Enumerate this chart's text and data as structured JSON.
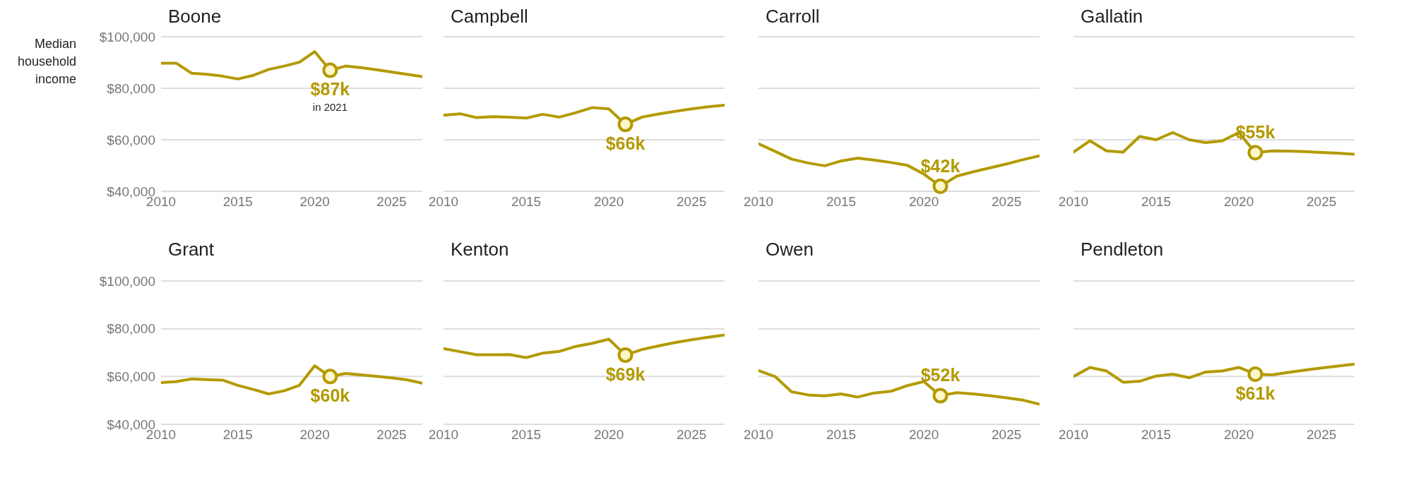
{
  "chart_data": [
    {
      "type": "line",
      "title": "Boone",
      "ylabel": "Median household income",
      "x": [
        2010,
        2011,
        2012,
        2013,
        2014,
        2015,
        2016,
        2017,
        2018,
        2019,
        2020,
        2021,
        2022,
        2023,
        2024,
        2025,
        2026,
        2027
      ],
      "xlim": [
        2010,
        2027
      ],
      "xticks": [
        2010,
        2015,
        2020,
        2025
      ],
      "ylim": [
        40000,
        100000
      ],
      "yticks": [
        {
          "value": 40000,
          "label": "$40,000"
        },
        {
          "value": 60000,
          "label": "$60,000"
        },
        {
          "value": 80000,
          "label": "$80,000"
        },
        {
          "value": 100000,
          "label": "$100,000"
        }
      ],
      "grid": "y",
      "annotations": [
        "in 2021"
      ],
      "series": [
        {
          "color": "#b39a00",
          "values": [
            89700,
            89700,
            85800,
            85400,
            84700,
            83600,
            85000,
            87300,
            88600,
            90100,
            94200,
            87000,
            88600,
            88000,
            87200,
            86300,
            85400,
            84500
          ],
          "value_labels": [
            null,
            null,
            null,
            null,
            null,
            null,
            null,
            null,
            null,
            null,
            null,
            "$87k",
            null,
            null,
            null,
            null,
            null,
            null
          ]
        }
      ]
    },
    {
      "type": "line",
      "title": "Campbell",
      "x": [
        2010,
        2011,
        2012,
        2013,
        2014,
        2015,
        2016,
        2017,
        2018,
        2019,
        2020,
        2021,
        2022,
        2023,
        2024,
        2025,
        2026,
        2027
      ],
      "xlim": [
        2010,
        2027
      ],
      "xticks": [
        2010,
        2015,
        2020,
        2025
      ],
      "ylim": [
        40000,
        100000
      ],
      "yticks": [
        40000,
        60000,
        80000,
        100000
      ],
      "grid": "y",
      "tick_labels": "x",
      "series": [
        {
          "color": "#b39a00",
          "values": [
            69500,
            70100,
            68600,
            69000,
            68800,
            68400,
            69900,
            68800,
            70500,
            72500,
            72000,
            66000,
            68800,
            70000,
            71000,
            72000,
            72800,
            73400
          ],
          "value_labels": [
            null,
            null,
            null,
            null,
            null,
            null,
            null,
            null,
            null,
            null,
            null,
            "$66k",
            null,
            null,
            null,
            null,
            null,
            null
          ]
        }
      ]
    },
    {
      "type": "line",
      "title": "Carroll",
      "x": [
        2010,
        2011,
        2012,
        2013,
        2014,
        2015,
        2016,
        2017,
        2018,
        2019,
        2020,
        2021,
        2022,
        2023,
        2024,
        2025,
        2026,
        2027
      ],
      "xlim": [
        2010,
        2027
      ],
      "xticks": [
        2010,
        2015,
        2020,
        2025
      ],
      "ylim": [
        40000,
        100000
      ],
      "yticks": [
        40000,
        60000,
        80000,
        100000
      ],
      "grid": "y",
      "tick_labels": "x",
      "series": [
        {
          "color": "#b39a00",
          "values": [
            58500,
            55500,
            52500,
            51000,
            49900,
            51800,
            52900,
            52100,
            51200,
            50100,
            46700,
            42000,
            45900,
            47600,
            49100,
            50600,
            52300,
            53800
          ],
          "value_labels": [
            null,
            null,
            null,
            null,
            null,
            null,
            null,
            null,
            null,
            null,
            null,
            "$42k",
            null,
            null,
            null,
            null,
            null,
            null
          ]
        }
      ]
    },
    {
      "type": "line",
      "title": "Gallatin",
      "x": [
        2010,
        2011,
        2012,
        2013,
        2014,
        2015,
        2016,
        2017,
        2018,
        2019,
        2020,
        2021,
        2022,
        2023,
        2024,
        2025,
        2026,
        2027
      ],
      "xlim": [
        2010,
        2027
      ],
      "xticks": [
        2010,
        2015,
        2020,
        2025
      ],
      "ylim": [
        40000,
        100000
      ],
      "yticks": [
        40000,
        60000,
        80000,
        100000
      ],
      "grid": "y",
      "tick_labels": "x",
      "series": [
        {
          "color": "#b39a00",
          "values": [
            55200,
            59600,
            55700,
            55200,
            61300,
            60000,
            62800,
            60000,
            58900,
            59600,
            62800,
            55000,
            55700,
            55600,
            55400,
            55100,
            54800,
            54400
          ],
          "value_labels": [
            null,
            null,
            null,
            null,
            null,
            null,
            null,
            null,
            null,
            null,
            null,
            "$55k",
            null,
            null,
            null,
            null,
            null,
            null
          ]
        }
      ]
    },
    {
      "type": "line",
      "title": "Grant",
      "x": [
        2010,
        2011,
        2012,
        2013,
        2014,
        2015,
        2016,
        2017,
        2018,
        2019,
        2020,
        2021,
        2022,
        2023,
        2024,
        2025,
        2026,
        2027
      ],
      "xlim": [
        2010,
        2027
      ],
      "xticks": [
        2010,
        2015,
        2020,
        2025
      ],
      "ylim": [
        40000,
        100000
      ],
      "yticks": [
        {
          "value": 40000,
          "label": "$40,000"
        },
        {
          "value": 60000,
          "label": "$60,000"
        },
        {
          "value": 80000,
          "label": "$80,000"
        },
        {
          "value": 100000,
          "label": "$100,000"
        }
      ],
      "grid": "y",
      "series": [
        {
          "color": "#b39a00",
          "values": [
            57400,
            57900,
            59000,
            58700,
            58500,
            56300,
            54600,
            52700,
            54000,
            56300,
            64500,
            60000,
            61300,
            60700,
            60100,
            59400,
            58600,
            57200
          ],
          "value_labels": [
            null,
            null,
            null,
            null,
            null,
            null,
            null,
            null,
            null,
            null,
            null,
            "$60k",
            null,
            null,
            null,
            null,
            null,
            null
          ]
        }
      ]
    },
    {
      "type": "line",
      "title": "Kenton",
      "x": [
        2010,
        2011,
        2012,
        2013,
        2014,
        2015,
        2016,
        2017,
        2018,
        2019,
        2020,
        2021,
        2022,
        2023,
        2024,
        2025,
        2026,
        2027
      ],
      "xlim": [
        2010,
        2027
      ],
      "xticks": [
        2010,
        2015,
        2020,
        2025
      ],
      "ylim": [
        40000,
        100000
      ],
      "yticks": [
        40000,
        60000,
        80000,
        100000
      ],
      "grid": "y",
      "tick_labels": "x",
      "series": [
        {
          "color": "#b39a00",
          "values": [
            71700,
            70400,
            69100,
            69100,
            69200,
            67900,
            69800,
            70500,
            72600,
            73900,
            75600,
            69000,
            71300,
            72800,
            74200,
            75400,
            76400,
            77400
          ],
          "value_labels": [
            null,
            null,
            null,
            null,
            null,
            null,
            null,
            null,
            null,
            null,
            null,
            "$69k",
            null,
            null,
            null,
            null,
            null,
            null
          ]
        }
      ]
    },
    {
      "type": "line",
      "title": "Owen",
      "x": [
        2010,
        2011,
        2012,
        2013,
        2014,
        2015,
        2016,
        2017,
        2018,
        2019,
        2020,
        2021,
        2022,
        2023,
        2024,
        2025,
        2026,
        2027
      ],
      "xlim": [
        2010,
        2027
      ],
      "xticks": [
        2010,
        2015,
        2020,
        2025
      ],
      "ylim": [
        40000,
        100000
      ],
      "yticks": [
        40000,
        60000,
        80000,
        100000
      ],
      "grid": "y",
      "tick_labels": "x",
      "series": [
        {
          "color": "#b39a00",
          "values": [
            62500,
            60000,
            53600,
            52300,
            51900,
            52700,
            51400,
            53100,
            53800,
            56200,
            57900,
            52000,
            53200,
            52700,
            52000,
            51100,
            50100,
            48400
          ],
          "value_labels": [
            null,
            null,
            null,
            null,
            null,
            null,
            null,
            null,
            null,
            null,
            null,
            "$52k",
            null,
            null,
            null,
            null,
            null,
            null
          ]
        }
      ]
    },
    {
      "type": "line",
      "title": "Pendleton",
      "x": [
        2010,
        2011,
        2012,
        2013,
        2014,
        2015,
        2016,
        2017,
        2018,
        2019,
        2020,
        2021,
        2022,
        2023,
        2024,
        2025,
        2026,
        2027
      ],
      "xlim": [
        2010,
        2027
      ],
      "xticks": [
        2010,
        2015,
        2020,
        2025
      ],
      "ylim": [
        40000,
        100000
      ],
      "yticks": [
        40000,
        60000,
        80000,
        100000
      ],
      "grid": "y",
      "tick_labels": "x",
      "series": [
        {
          "color": "#b39a00",
          "values": [
            60000,
            63800,
            62300,
            57600,
            58000,
            60200,
            61000,
            59500,
            61900,
            62300,
            63800,
            61000,
            60700,
            61700,
            62700,
            63600,
            64400,
            65200
          ],
          "value_labels": [
            null,
            null,
            null,
            null,
            null,
            null,
            null,
            null,
            null,
            null,
            null,
            "$61k",
            null,
            null,
            null,
            null,
            null,
            null
          ]
        }
      ]
    }
  ]
}
